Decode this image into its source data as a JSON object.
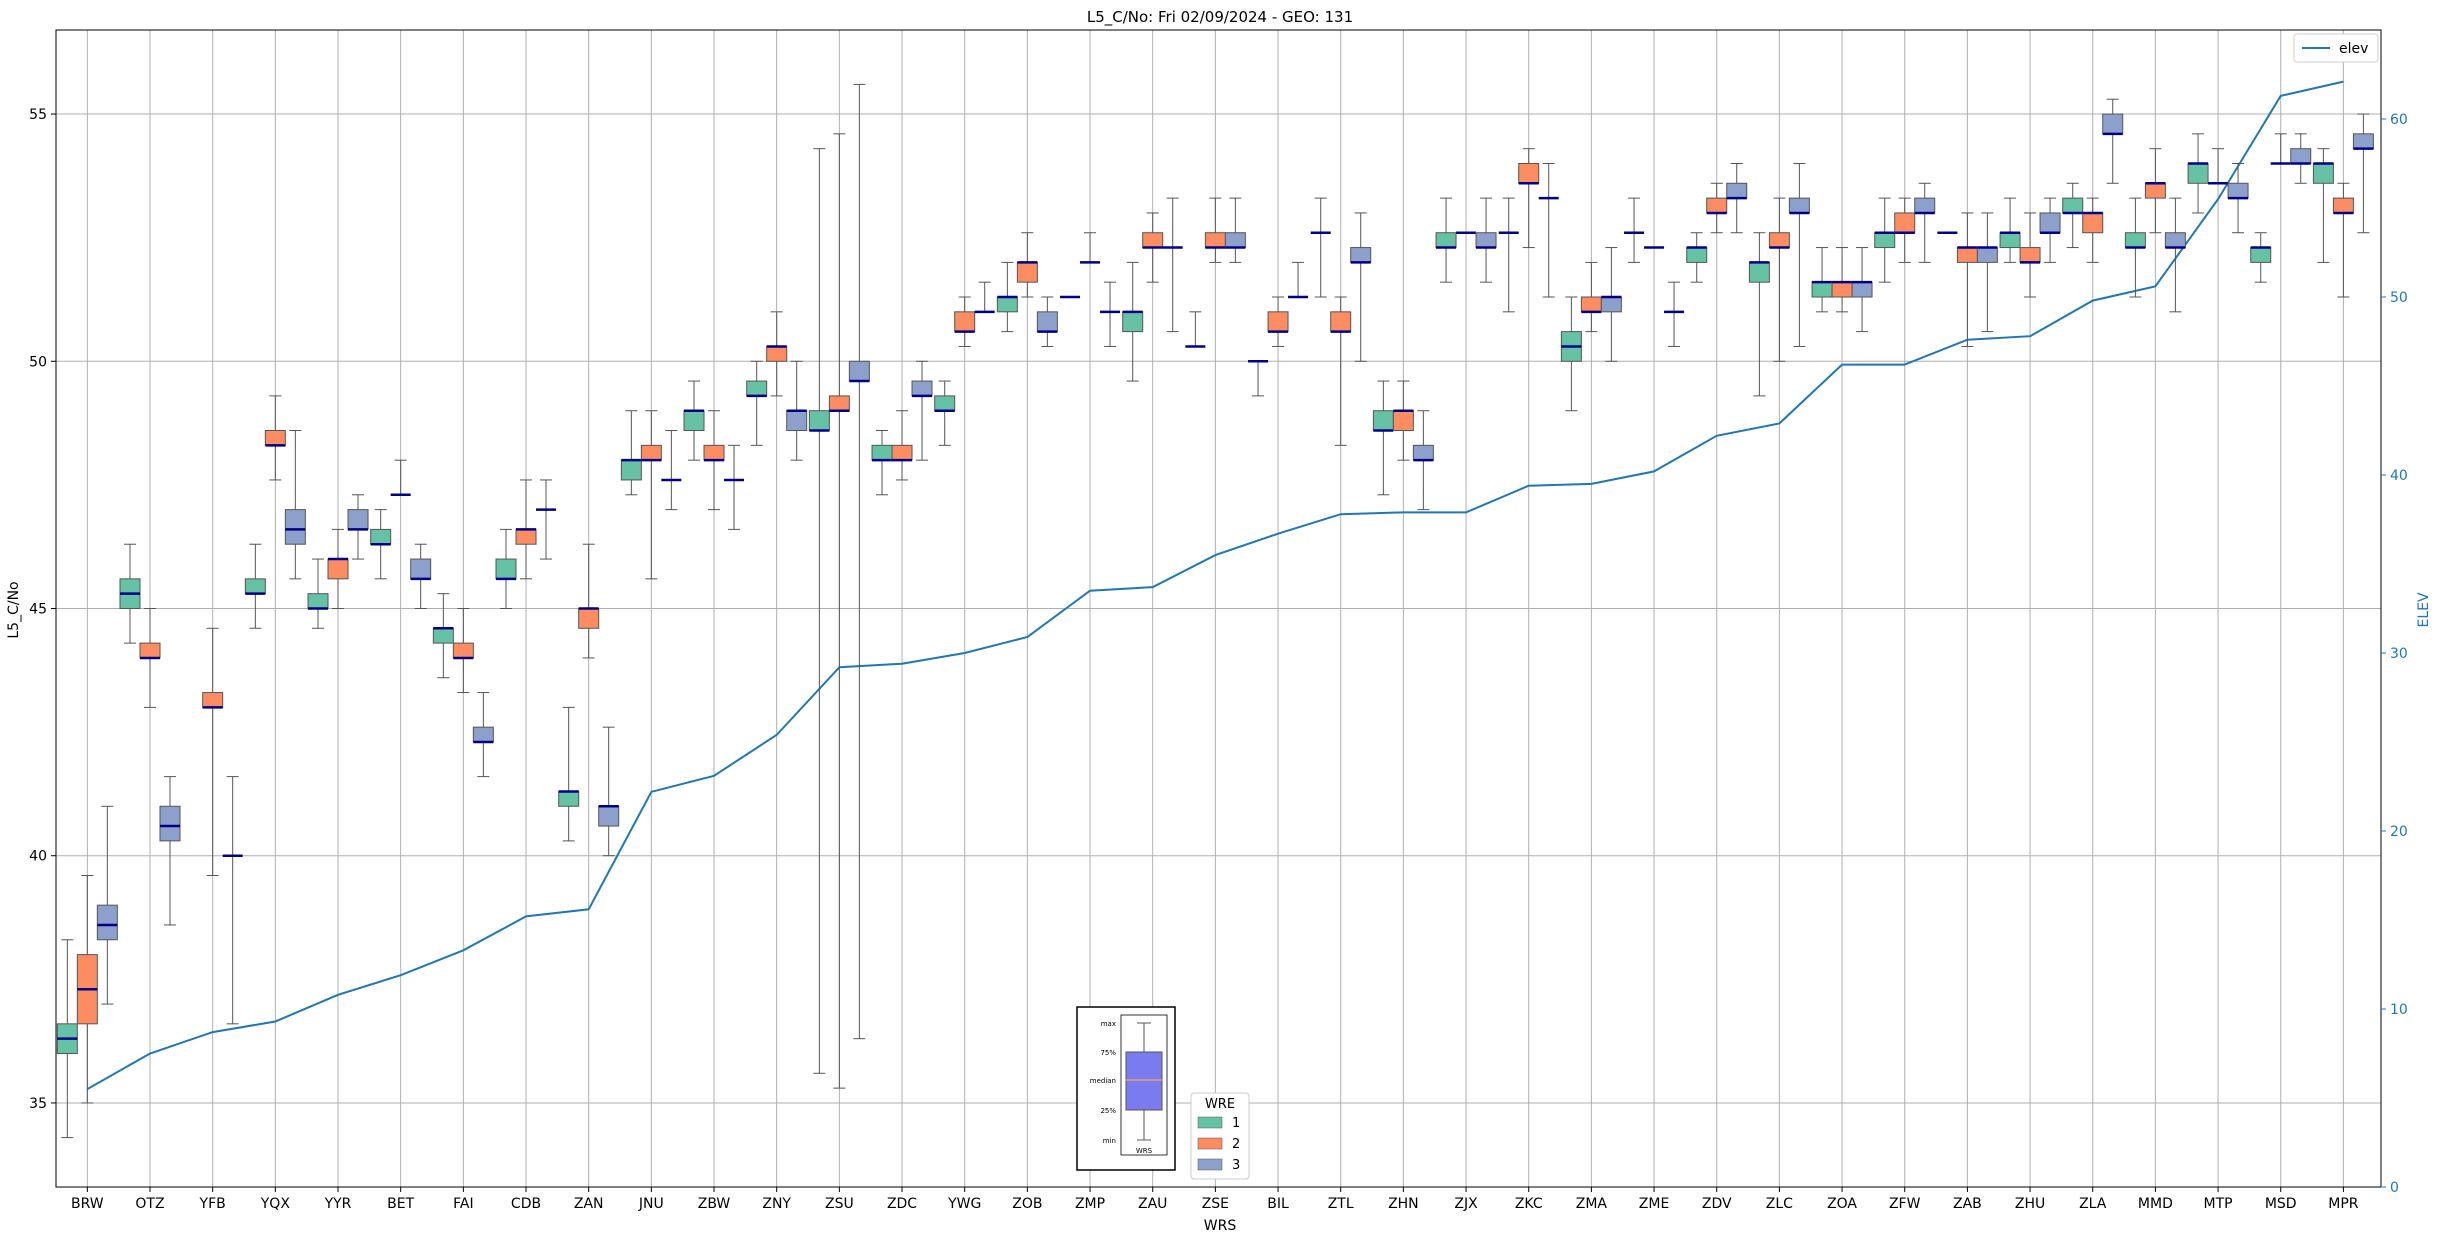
{
  "colors": {
    "wre1": "#66c2a5",
    "wre2": "#fc8d62",
    "wre3": "#8da0cb",
    "elev": "#1f77b4",
    "median": "#00008b",
    "grid": "#b0b0b0",
    "inset_box": "#7b7bf0"
  },
  "chart_data": {
    "type": "box",
    "title": "L5_C/No: Fri 02/09/2024 - GEO: 131",
    "xlabel": "WRS",
    "ylabel": "L5_C/No",
    "y2label": "ELEV",
    "ylim": [
      33.3,
      56.7
    ],
    "y2lim": [
      0,
      65
    ],
    "yticks": [
      35,
      40,
      45,
      50,
      55
    ],
    "y2ticks": [
      0,
      10,
      20,
      30,
      40,
      50,
      60
    ],
    "grid": true,
    "categories": [
      "BRW",
      "OTZ",
      "YFB",
      "YQX",
      "YYR",
      "BET",
      "FAI",
      "CDB",
      "ZAN",
      "JNU",
      "ZBW",
      "ZNY",
      "ZSU",
      "ZDC",
      "YWG",
      "ZOB",
      "ZMP",
      "ZAU",
      "ZSE",
      "BIL",
      "ZTL",
      "ZHN",
      "ZJX",
      "ZKC",
      "ZMA",
      "ZME",
      "ZDV",
      "ZLC",
      "ZOA",
      "ZFW",
      "ZAB",
      "ZHU",
      "ZLA",
      "MMD",
      "MTP",
      "MSD",
      "MPR"
    ],
    "elev_series": {
      "name": "elev",
      "values": [
        5.5,
        7.5,
        8.7,
        9.3,
        10.8,
        11.9,
        13.3,
        15.2,
        15.6,
        22.2,
        23.1,
        25.4,
        29.2,
        29.4,
        30.0,
        30.9,
        33.5,
        33.7,
        35.5,
        36.7,
        37.8,
        37.9,
        37.9,
        39.4,
        39.5,
        40.2,
        42.2,
        42.9,
        46.2,
        46.2,
        47.6,
        47.8,
        49.8,
        50.6,
        55.5,
        61.3,
        62.1
      ]
    },
    "wre_series": [
      {
        "name": "1",
        "boxes": [
          {
            "min": 34.3,
            "q1": 36.0,
            "median": 36.3,
            "q3": 36.6,
            "max": 38.3
          },
          {
            "min": 44.3,
            "q1": 45.0,
            "median": 45.3,
            "q3": 45.6,
            "max": 46.3
          },
          {
            "min": null,
            "q1": null,
            "median": null,
            "q3": null,
            "max": null
          },
          {
            "min": 44.6,
            "q1": 45.3,
            "median": 45.3,
            "q3": 45.6,
            "max": 46.3
          },
          {
            "min": 44.6,
            "q1": 45.0,
            "median": 45.0,
            "q3": 45.3,
            "max": 46.0
          },
          {
            "min": 45.6,
            "q1": 46.3,
            "median": 46.3,
            "q3": 46.6,
            "max": 47.0
          },
          {
            "min": 43.6,
            "q1": 44.3,
            "median": 44.6,
            "q3": 44.6,
            "max": 45.3
          },
          {
            "min": 45.0,
            "q1": 45.6,
            "median": 45.6,
            "q3": 46.0,
            "max": 46.6
          },
          {
            "min": 40.3,
            "q1": 41.0,
            "median": 41.3,
            "q3": 41.3,
            "max": 43.0
          },
          {
            "min": 47.3,
            "q1": 47.6,
            "median": 48.0,
            "q3": 48.0,
            "max": 49.0
          },
          {
            "min": 48.0,
            "q1": 48.6,
            "median": 49.0,
            "q3": 49.0,
            "max": 49.6
          },
          {
            "min": 48.3,
            "q1": 49.3,
            "median": 49.3,
            "q3": 49.6,
            "max": 50.0
          },
          {
            "min": 35.6,
            "q1": 48.6,
            "median": 48.6,
            "q3": 49.0,
            "max": 54.3
          },
          {
            "min": 47.3,
            "q1": 48.0,
            "median": 48.0,
            "q3": 48.3,
            "max": 48.6
          },
          {
            "min": 48.3,
            "q1": 49.0,
            "median": 49.0,
            "q3": 49.3,
            "max": 49.6
          },
          {
            "min": 50.6,
            "q1": 51.0,
            "median": 51.3,
            "q3": 51.3,
            "max": 52.0
          },
          {
            "min": null,
            "q1": null,
            "median": 51.3,
            "q3": null,
            "max": null
          },
          {
            "min": 49.6,
            "q1": 50.6,
            "median": 51.0,
            "q3": 51.0,
            "max": 52.0
          },
          {
            "min": null,
            "q1": null,
            "median": 50.3,
            "q3": null,
            "max": 51.0
          },
          {
            "min": 49.3,
            "q1": null,
            "median": 50.0,
            "q3": null,
            "max": null
          },
          {
            "min": 51.3,
            "q1": null,
            "median": 52.6,
            "q3": null,
            "max": 53.3
          },
          {
            "min": 47.3,
            "q1": 48.6,
            "median": 48.6,
            "q3": 49.0,
            "max": 49.6
          },
          {
            "min": 51.6,
            "q1": 52.3,
            "median": 52.3,
            "q3": 52.6,
            "max": 53.3
          },
          {
            "min": 51.0,
            "q1": null,
            "median": 52.6,
            "q3": null,
            "max": 53.3
          },
          {
            "min": 49.0,
            "q1": 50.0,
            "median": 50.3,
            "q3": 50.6,
            "max": 51.3
          },
          {
            "min": 52.0,
            "q1": null,
            "median": 52.6,
            "q3": null,
            "max": 53.3
          },
          {
            "min": 51.6,
            "q1": 52.0,
            "median": 52.3,
            "q3": 52.3,
            "max": 52.6
          },
          {
            "min": 49.3,
            "q1": 51.6,
            "median": 52.0,
            "q3": 52.0,
            "max": 52.6
          },
          {
            "min": 51.0,
            "q1": 51.3,
            "median": 51.6,
            "q3": 51.6,
            "max": 52.3
          },
          {
            "min": 51.6,
            "q1": 52.3,
            "median": 52.6,
            "q3": 52.6,
            "max": 53.3
          },
          {
            "min": null,
            "q1": null,
            "median": 52.6,
            "q3": null,
            "max": null
          },
          {
            "min": 52.0,
            "q1": 52.3,
            "median": 52.6,
            "q3": 52.6,
            "max": 53.3
          },
          {
            "min": 52.3,
            "q1": 53.0,
            "median": 53.0,
            "q3": 53.3,
            "max": 53.6
          },
          {
            "min": 51.3,
            "q1": 52.3,
            "median": 52.3,
            "q3": 52.6,
            "max": 53.3
          },
          {
            "min": 53.0,
            "q1": 53.6,
            "median": 54.0,
            "q3": 54.0,
            "max": 54.6
          },
          {
            "min": 51.6,
            "q1": 52.0,
            "median": 52.3,
            "q3": 52.3,
            "max": 52.6
          },
          {
            "min": 52.0,
            "q1": 53.6,
            "median": 54.0,
            "q3": 54.0,
            "max": 54.3
          }
        ]
      },
      {
        "name": "2",
        "boxes": [
          {
            "min": 35.0,
            "q1": 36.6,
            "median": 37.3,
            "q3": 38.0,
            "max": 39.6
          },
          {
            "min": 43.0,
            "q1": 44.0,
            "median": 44.0,
            "q3": 44.3,
            "max": 45.0
          },
          {
            "min": 39.6,
            "q1": 43.0,
            "median": 43.0,
            "q3": 43.3,
            "max": 44.6
          },
          {
            "min": 47.6,
            "q1": 48.3,
            "median": 48.3,
            "q3": 48.6,
            "max": 49.3
          },
          {
            "min": 45.0,
            "q1": 45.6,
            "median": 46.0,
            "q3": 46.0,
            "max": 46.6
          },
          {
            "min": null,
            "q1": null,
            "median": 47.3,
            "q3": null,
            "max": 48.0
          },
          {
            "min": 43.3,
            "q1": 44.0,
            "median": 44.0,
            "q3": 44.3,
            "max": 45.0
          },
          {
            "min": 45.6,
            "q1": 46.3,
            "median": 46.6,
            "q3": 46.6,
            "max": 47.6
          },
          {
            "min": 44.0,
            "q1": 44.6,
            "median": 45.0,
            "q3": 45.0,
            "max": 46.3
          },
          {
            "min": 45.6,
            "q1": 48.0,
            "median": 48.0,
            "q3": 48.3,
            "max": 49.0
          },
          {
            "min": 47.0,
            "q1": 48.0,
            "median": 48.0,
            "q3": 48.3,
            "max": 49.0
          },
          {
            "min": 49.3,
            "q1": 50.0,
            "median": 50.3,
            "q3": 50.3,
            "max": 51.0
          },
          {
            "min": 35.3,
            "q1": 49.0,
            "median": 49.0,
            "q3": 49.3,
            "max": 54.6
          },
          {
            "min": 47.6,
            "q1": 48.0,
            "median": 48.0,
            "q3": 48.3,
            "max": 49.0
          },
          {
            "min": 50.3,
            "q1": 50.6,
            "median": 50.6,
            "q3": 51.0,
            "max": 51.3
          },
          {
            "min": 51.3,
            "q1": 51.6,
            "median": 52.0,
            "q3": 52.0,
            "max": 52.6
          },
          {
            "min": null,
            "q1": null,
            "median": 52.0,
            "q3": null,
            "max": 52.6
          },
          {
            "min": 51.6,
            "q1": 52.3,
            "median": 52.3,
            "q3": 52.6,
            "max": 53.0
          },
          {
            "min": 52.0,
            "q1": 52.3,
            "median": 52.3,
            "q3": 52.6,
            "max": 53.3
          },
          {
            "min": 50.3,
            "q1": 50.6,
            "median": 50.6,
            "q3": 51.0,
            "max": 51.3
          },
          {
            "min": 48.3,
            "q1": 50.6,
            "median": 50.6,
            "q3": 51.0,
            "max": 51.3
          },
          {
            "min": 48.0,
            "q1": 48.6,
            "median": 49.0,
            "q3": 49.0,
            "max": 49.6
          },
          {
            "min": null,
            "q1": null,
            "median": 52.6,
            "q3": null,
            "max": null
          },
          {
            "min": 52.3,
            "q1": 53.6,
            "median": 53.6,
            "q3": 54.0,
            "max": 54.3
          },
          {
            "min": 50.6,
            "q1": 51.0,
            "median": 51.0,
            "q3": 51.3,
            "max": 52.0
          },
          {
            "min": null,
            "q1": null,
            "median": 52.3,
            "q3": null,
            "max": null
          },
          {
            "min": 52.6,
            "q1": 53.0,
            "median": 53.0,
            "q3": 53.3,
            "max": 53.6
          },
          {
            "min": 50.0,
            "q1": 52.3,
            "median": 52.3,
            "q3": 52.6,
            "max": 53.3
          },
          {
            "min": 51.0,
            "q1": 51.3,
            "median": 51.6,
            "q3": 51.6,
            "max": 52.3
          },
          {
            "min": 52.0,
            "q1": 52.6,
            "median": 52.6,
            "q3": 53.0,
            "max": 53.3
          },
          {
            "min": 50.3,
            "q1": 52.0,
            "median": 52.3,
            "q3": 52.3,
            "max": 53.0
          },
          {
            "min": 51.3,
            "q1": 52.0,
            "median": 52.0,
            "q3": 52.3,
            "max": 53.0
          },
          {
            "min": 52.0,
            "q1": 52.6,
            "median": 53.0,
            "q3": 53.0,
            "max": 53.3
          },
          {
            "min": 52.6,
            "q1": 53.3,
            "median": 53.6,
            "q3": 53.6,
            "max": 54.3
          },
          {
            "min": null,
            "q1": null,
            "median": 53.6,
            "q3": null,
            "max": 54.3
          },
          {
            "min": null,
            "q1": null,
            "median": 54.0,
            "q3": null,
            "max": 54.6
          },
          {
            "min": 51.3,
            "q1": 53.0,
            "median": 53.0,
            "q3": 53.3,
            "max": 53.6
          }
        ]
      },
      {
        "name": "3",
        "boxes": [
          {
            "min": 37.0,
            "q1": 38.3,
            "median": 38.6,
            "q3": 39.0,
            "max": 41.0
          },
          {
            "min": 38.6,
            "q1": 40.3,
            "median": 40.6,
            "q3": 41.0,
            "max": 41.6
          },
          {
            "min": 36.6,
            "q1": null,
            "median": 40.0,
            "q3": null,
            "max": 41.6
          },
          {
            "min": 45.6,
            "q1": 46.3,
            "median": 46.6,
            "q3": 47.0,
            "max": 48.6
          },
          {
            "min": 46.0,
            "q1": 46.6,
            "median": 46.6,
            "q3": 47.0,
            "max": 47.3
          },
          {
            "min": 45.0,
            "q1": 45.6,
            "median": 45.6,
            "q3": 46.0,
            "max": 46.3
          },
          {
            "min": 41.6,
            "q1": 42.3,
            "median": 42.3,
            "q3": 42.6,
            "max": 43.3
          },
          {
            "min": 46.0,
            "q1": null,
            "median": 47.0,
            "q3": null,
            "max": 47.6
          },
          {
            "min": 40.0,
            "q1": 40.6,
            "median": 41.0,
            "q3": 41.0,
            "max": 42.6
          },
          {
            "min": 47.0,
            "q1": null,
            "median": 47.6,
            "q3": null,
            "max": 48.6
          },
          {
            "min": 46.6,
            "q1": null,
            "median": 47.6,
            "q3": null,
            "max": 48.3
          },
          {
            "min": 48.0,
            "q1": 48.6,
            "median": 49.0,
            "q3": 49.0,
            "max": 50.0
          },
          {
            "min": 36.3,
            "q1": 49.6,
            "median": 49.6,
            "q3": 50.0,
            "max": 55.6
          },
          {
            "min": 48.0,
            "q1": 49.3,
            "median": 49.3,
            "q3": 49.6,
            "max": 50.0
          },
          {
            "min": null,
            "q1": null,
            "median": 51.0,
            "q3": null,
            "max": 51.6
          },
          {
            "min": 50.3,
            "q1": 50.6,
            "median": 50.6,
            "q3": 51.0,
            "max": 51.3
          },
          {
            "min": 50.3,
            "q1": null,
            "median": 51.0,
            "q3": null,
            "max": 51.6
          },
          {
            "min": 50.6,
            "q1": null,
            "median": 52.3,
            "q3": null,
            "max": 53.3
          },
          {
            "min": 52.0,
            "q1": 52.3,
            "median": 52.3,
            "q3": 52.6,
            "max": 53.3
          },
          {
            "min": null,
            "q1": null,
            "median": 51.3,
            "q3": null,
            "max": 52.0
          },
          {
            "min": 50.0,
            "q1": 52.0,
            "median": 52.0,
            "q3": 52.3,
            "max": 53.0
          },
          {
            "min": 47.0,
            "q1": 48.0,
            "median": 48.0,
            "q3": 48.3,
            "max": 49.0
          },
          {
            "min": 51.6,
            "q1": 52.3,
            "median": 52.3,
            "q3": 52.6,
            "max": 53.3
          },
          {
            "min": 51.3,
            "q1": null,
            "median": 53.3,
            "q3": null,
            "max": 54.0
          },
          {
            "min": 50.0,
            "q1": 51.0,
            "median": 51.3,
            "q3": 51.3,
            "max": 52.3
          },
          {
            "min": 50.3,
            "q1": null,
            "median": 51.0,
            "q3": null,
            "max": 51.6
          },
          {
            "min": 52.6,
            "q1": 53.3,
            "median": 53.3,
            "q3": 53.6,
            "max": 54.0
          },
          {
            "min": 50.3,
            "q1": 53.0,
            "median": 53.0,
            "q3": 53.3,
            "max": 54.0
          },
          {
            "min": 50.6,
            "q1": 51.3,
            "median": 51.6,
            "q3": 51.6,
            "max": 52.3
          },
          {
            "min": 52.0,
            "q1": 53.0,
            "median": 53.0,
            "q3": 53.3,
            "max": 53.6
          },
          {
            "min": 50.6,
            "q1": 52.0,
            "median": 52.3,
            "q3": 52.3,
            "max": 53.0
          },
          {
            "min": 52.0,
            "q1": 52.6,
            "median": 52.6,
            "q3": 53.0,
            "max": 53.3
          },
          {
            "min": 53.6,
            "q1": 54.6,
            "median": 54.6,
            "q3": 55.0,
            "max": 55.3
          },
          {
            "min": 51.0,
            "q1": 52.3,
            "median": 52.3,
            "q3": 52.6,
            "max": 53.3
          },
          {
            "min": 52.6,
            "q1": 53.3,
            "median": 53.3,
            "q3": 53.6,
            "max": 54.0
          },
          {
            "min": 53.6,
            "q1": 54.0,
            "median": 54.0,
            "q3": 54.3,
            "max": 54.6
          },
          {
            "min": 52.6,
            "q1": 54.3,
            "median": 54.3,
            "q3": 54.6,
            "max": 55.0
          }
        ]
      }
    ],
    "legend_elev": {
      "label": "elev",
      "position": "top-right"
    },
    "legend_wre": {
      "title": "WRE",
      "labels": [
        "1",
        "2",
        "3"
      ],
      "position": "bottom-center"
    },
    "inset": {
      "labels": [
        "max",
        "75%",
        "median",
        "25%",
        "min"
      ],
      "xlabel": "WRS"
    }
  }
}
